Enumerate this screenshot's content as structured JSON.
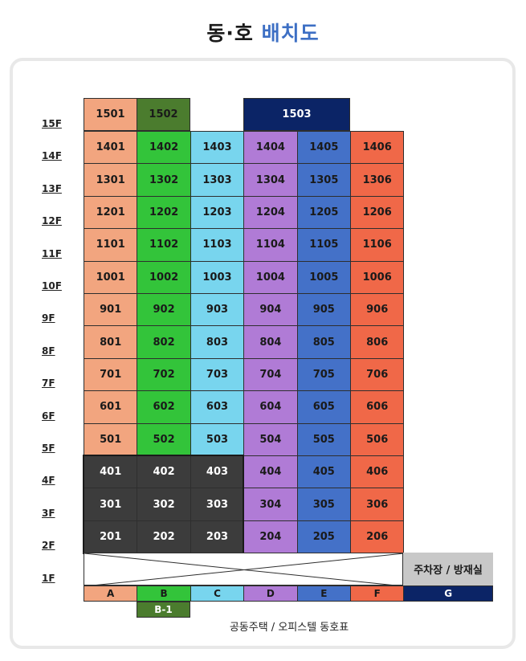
{
  "title": {
    "part1": "동·호",
    "part2": "배치도"
  },
  "floors": [
    "15F",
    "14F",
    "13F",
    "12F",
    "11F",
    "10F",
    "9F",
    "8F",
    "7F",
    "6F",
    "5F",
    "4F",
    "3F",
    "2F",
    "1F"
  ],
  "top_floor": [
    {
      "unit": "1501",
      "building": "A",
      "span": 1,
      "color": "#f2a57f"
    },
    {
      "unit": "1502",
      "building": "B",
      "span": 1,
      "color": "#4b7c2e"
    },
    {
      "unit": "1503",
      "building": "D-E",
      "span": 2,
      "color": "#0b2466"
    }
  ],
  "rows": [
    [
      "1401",
      "1402",
      "1403",
      "1404",
      "1405",
      "1406"
    ],
    [
      "1301",
      "1302",
      "1303",
      "1304",
      "1305",
      "1306"
    ],
    [
      "1201",
      "1202",
      "1203",
      "1204",
      "1205",
      "1206"
    ],
    [
      "1101",
      "1102",
      "1103",
      "1104",
      "1105",
      "1106"
    ],
    [
      "1001",
      "1002",
      "1003",
      "1004",
      "1005",
      "1006"
    ],
    [
      "901",
      "902",
      "903",
      "904",
      "905",
      "906"
    ],
    [
      "801",
      "802",
      "803",
      "804",
      "805",
      "806"
    ],
    [
      "701",
      "702",
      "703",
      "704",
      "705",
      "706"
    ],
    [
      "601",
      "602",
      "603",
      "604",
      "605",
      "606"
    ],
    [
      "501",
      "502",
      "503",
      "504",
      "505",
      "506"
    ],
    [
      "401",
      "402",
      "403",
      "404",
      "405",
      "406"
    ],
    [
      "301",
      "302",
      "303",
      "304",
      "305",
      "306"
    ],
    [
      "201",
      "202",
      "203",
      "204",
      "205",
      "206"
    ]
  ],
  "building_colors": {
    "A": "#f2a57f",
    "B": "#33c43a",
    "C": "#78d5ee",
    "D": "#b07bd6",
    "E": "#4471c8",
    "F": "#f06848",
    "G": "#0b2466",
    "dark": "#3c3c3c"
  },
  "dark_units": [
    "401",
    "402",
    "403",
    "301",
    "302",
    "303",
    "201",
    "202",
    "203"
  ],
  "parking_label": "주차장 / 방재실",
  "buildings": [
    "A",
    "B",
    "C",
    "D",
    "E",
    "F",
    "G"
  ],
  "sub_building": "B-1",
  "caption": "공동주택 / 오피스텔 동호표"
}
